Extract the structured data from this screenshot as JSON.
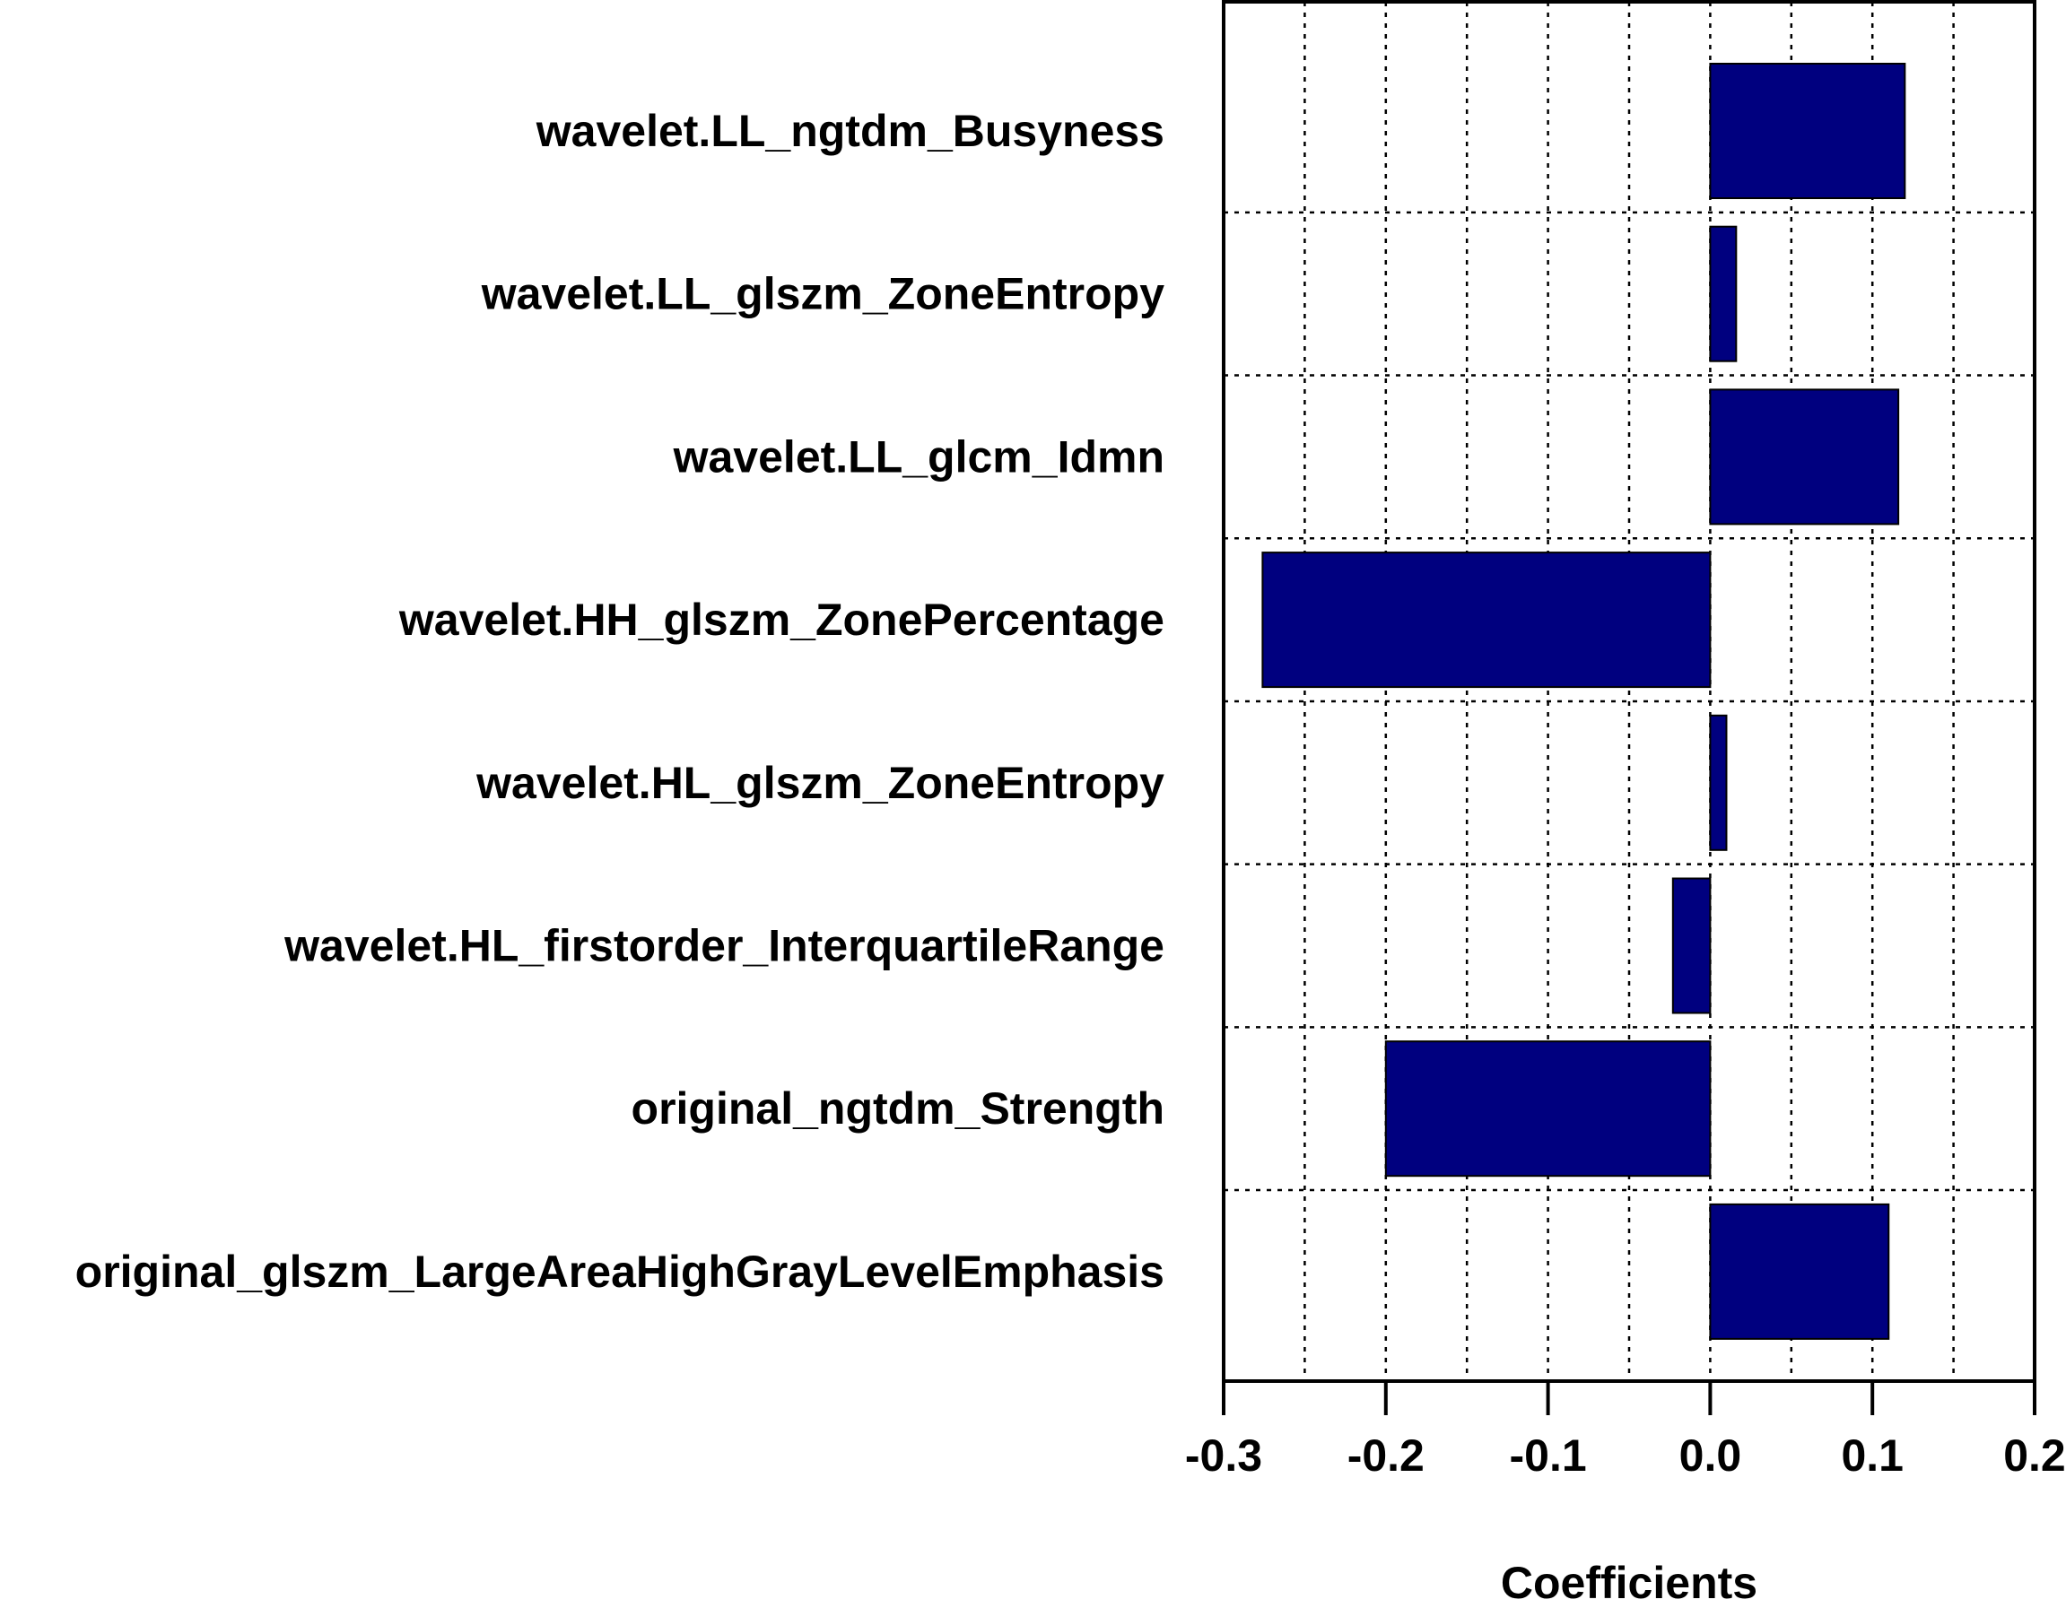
{
  "chart_data": {
    "type": "bar",
    "orientation": "horizontal",
    "title": "",
    "xlabel": "Coefficients",
    "ylabel": "",
    "xlim": [
      -0.3,
      0.2
    ],
    "x_ticks": [
      -0.3,
      -0.2,
      -0.1,
      0.0,
      0.1,
      0.2
    ],
    "x_tick_labels": [
      "-0.3",
      "-0.2",
      "-0.1",
      "0.0",
      "0.1",
      "0.2"
    ],
    "grid": true,
    "grid_style": "dotted",
    "categories": [
      "wavelet.LL_ngtdm_Busyness",
      "wavelet.LL_glszm_ZoneEntropy",
      "wavelet.LL_glcm_Idmn",
      "wavelet.HH_glszm_ZonePercentage",
      "wavelet.HL_glszm_ZoneEntropy",
      "wavelet.HL_firstorder_InterquartileRange",
      "original_ngtdm_Strength",
      "original_glszm_LargeAreaHighGrayLevelEmphasis"
    ],
    "values": [
      0.12,
      0.016,
      0.116,
      -0.276,
      0.01,
      -0.023,
      -0.2,
      0.11
    ],
    "bar_color": "#00007f"
  }
}
